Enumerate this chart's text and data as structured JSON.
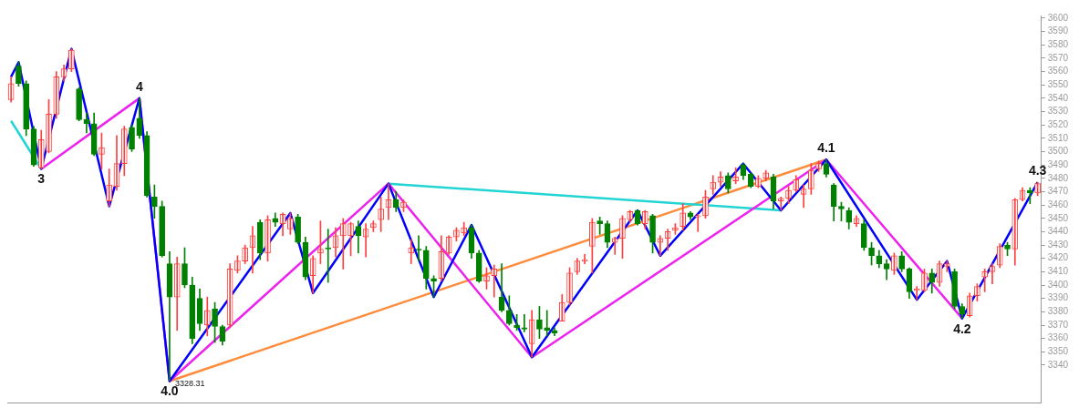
{
  "chart_data": {
    "type": "candlestick",
    "categories": [
      null,
      null,
      null,
      null,
      null,
      null,
      null,
      null,
      null,
      null,
      null,
      null,
      null,
      null,
      null,
      null,
      null,
      null,
      null,
      null,
      null,
      null,
      null,
      null,
      null,
      null,
      null,
      null,
      null,
      null,
      null,
      null,
      null,
      null,
      null,
      null,
      null,
      null,
      null,
      null,
      null,
      null,
      null,
      null,
      null,
      null,
      null,
      null,
      null,
      null,
      null,
      null,
      null,
      null,
      null,
      null,
      null,
      null,
      null,
      null,
      null,
      null,
      null,
      null,
      null,
      null,
      null,
      null,
      null,
      null,
      null,
      null,
      null,
      null,
      null,
      null,
      null,
      null,
      null,
      null,
      null,
      null,
      null,
      null,
      null,
      null,
      null,
      null,
      null,
      null,
      null,
      null,
      null,
      null,
      null,
      null,
      null,
      null,
      null,
      null,
      null,
      null,
      null,
      null,
      null,
      null,
      null,
      null,
      null,
      null,
      null,
      null,
      null,
      null,
      null,
      null,
      null,
      null,
      null,
      null,
      null,
      null,
      null,
      null,
      null,
      null,
      null,
      null,
      null,
      null,
      null,
      null,
      null,
      null,
      null,
      null,
      null
    ],
    "ohlc": [
      [
        3539,
        3556,
        3537,
        3551
      ],
      [
        3564,
        3567,
        3549,
        3551
      ],
      [
        3551,
        3553,
        3512,
        3517
      ],
      [
        3517,
        3519,
        3489,
        3490
      ],
      [
        3488,
        3516,
        3487,
        3509
      ],
      [
        3500,
        3539,
        3499,
        3528
      ],
      [
        3528,
        3560,
        3525,
        3556
      ],
      [
        3556,
        3565,
        3553,
        3562
      ],
      [
        3562,
        3577,
        3560,
        3576
      ],
      [
        3547,
        3548,
        3523,
        3524
      ],
      [
        3524,
        3529,
        3514,
        3521
      ],
      [
        3521,
        3529,
        3497,
        3498
      ],
      [
        3498,
        3514,
        3487,
        3503
      ],
      [
        3463,
        3487,
        3459,
        3475
      ],
      [
        3474,
        3512,
        3471,
        3491
      ],
      [
        3491,
        3519,
        3482,
        3517
      ],
      [
        3518,
        3520,
        3500,
        3502
      ],
      [
        3525,
        3540,
        3510,
        3512
      ],
      [
        3512,
        3515,
        3466,
        3467
      ],
      [
        3466,
        3475,
        3450,
        3459
      ],
      [
        3459,
        3463,
        3421,
        3422
      ],
      [
        3416,
        3425,
        3328.31,
        3391
      ],
      [
        3391,
        3421,
        3366,
        3416
      ],
      [
        3416,
        3428,
        3398,
        3400
      ],
      [
        3400,
        3406,
        3356,
        3360
      ],
      [
        3390,
        3397,
        3366,
        3371
      ],
      [
        3370,
        3391,
        3362,
        3381
      ],
      [
        3382,
        3387,
        3357,
        3369
      ],
      [
        3369,
        3370,
        3355,
        3358
      ],
      [
        3370,
        3416,
        3368,
        3412
      ],
      [
        3411,
        3422,
        3409,
        3418
      ],
      [
        3418,
        3430,
        3416,
        3428
      ],
      [
        3428,
        3444,
        3409,
        3437
      ],
      [
        3447,
        3449,
        3419,
        3424
      ],
      [
        3424,
        3452,
        3418,
        3449
      ],
      [
        3450,
        3454,
        3444,
        3447
      ],
      [
        3446,
        3454,
        3437,
        3453
      ],
      [
        3442,
        3454,
        3438,
        3450
      ],
      [
        3451,
        3453,
        3431,
        3432
      ],
      [
        3432,
        3436,
        3404,
        3406
      ],
      [
        3407,
        3422,
        3394,
        3420
      ],
      [
        3424,
        3448,
        3416,
        3427
      ],
      [
        3428,
        3442,
        3402,
        3427
      ],
      [
        3428,
        3443,
        3421,
        3437
      ],
      [
        3437,
        3450,
        3412,
        3446
      ],
      [
        3437,
        3447,
        3422,
        3446
      ],
      [
        3444,
        3448,
        3424,
        3437
      ],
      [
        3436,
        3446,
        3421,
        3442
      ],
      [
        3443,
        3448,
        3440,
        3446
      ],
      [
        3449,
        3466,
        3440,
        3457
      ],
      [
        3458,
        3476,
        3449,
        3464
      ],
      [
        3464,
        3470,
        3455,
        3458
      ],
      [
        3458,
        3464,
        3455,
        3462
      ],
      [
        3424,
        3434,
        3416,
        3428
      ],
      [
        3427,
        3437,
        3418,
        3426
      ],
      [
        3426,
        3429,
        3397,
        3405
      ],
      [
        3405,
        3407,
        3391,
        3403
      ],
      [
        3405,
        3437,
        3403,
        3425
      ],
      [
        3424,
        3437,
        3423,
        3436
      ],
      [
        3436,
        3443,
        3433,
        3441
      ],
      [
        3439,
        3447,
        3437,
        3443
      ],
      [
        3443,
        3445,
        3420,
        3424
      ],
      [
        3424,
        3426,
        3402,
        3403
      ],
      [
        3403,
        3413,
        3397,
        3407
      ],
      [
        3407,
        3415,
        3391,
        3412
      ],
      [
        3391,
        3416,
        3380,
        3381
      ],
      [
        3381,
        3392,
        3370,
        3371
      ],
      [
        3370,
        3378,
        3366,
        3368
      ],
      [
        3368,
        3378,
        3365,
        3367
      ],
      [
        3356,
        3381,
        3346,
        3374
      ],
      [
        3374,
        3384,
        3360,
        3367
      ],
      [
        3368,
        3381,
        3362,
        3366
      ],
      [
        3366,
        3368,
        3362,
        3364
      ],
      [
        3373,
        3393,
        3373,
        3387
      ],
      [
        3387,
        3413,
        3385,
        3409
      ],
      [
        3410,
        3420,
        3408,
        3418
      ],
      [
        3418,
        3423,
        3416,
        3419
      ],
      [
        3429,
        3450,
        3409,
        3447
      ],
      [
        3448,
        3451,
        3438,
        3446
      ],
      [
        3446,
        3448,
        3428,
        3432
      ],
      [
        3432,
        3436,
        3423,
        3435
      ],
      [
        3435,
        3452,
        3420,
        3450
      ],
      [
        3449,
        3456,
        3447,
        3455
      ],
      [
        3456,
        3456,
        3445,
        3446
      ],
      [
        3446,
        3456,
        3442,
        3455
      ],
      [
        3452,
        3453,
        3424,
        3432
      ],
      [
        3432,
        3437,
        3422,
        3435
      ],
      [
        3435,
        3442,
        3426,
        3440
      ],
      [
        3441,
        3446,
        3438,
        3443
      ],
      [
        3444,
        3461,
        3441,
        3454
      ],
      [
        3454,
        3455,
        3449,
        3451
      ],
      [
        3451,
        3453,
        3440,
        3452
      ],
      [
        3452,
        3471,
        3450,
        3466
      ],
      [
        3472,
        3482,
        3468,
        3477
      ],
      [
        3477,
        3485,
        3474,
        3481
      ],
      [
        3482,
        3484,
        3469,
        3472
      ],
      [
        3478,
        3488,
        3476,
        3481
      ],
      [
        3490,
        3491,
        3479,
        3482
      ],
      [
        3483,
        3484,
        3473,
        3474
      ],
      [
        3474,
        3482,
        3473,
        3480
      ],
      [
        3480,
        3486,
        3478,
        3484
      ],
      [
        3481,
        3483,
        3457,
        3463
      ],
      [
        3463,
        3466,
        3456,
        3465
      ],
      [
        3465,
        3474,
        3461,
        3471
      ],
      [
        3471,
        3482,
        3470,
        3479
      ],
      [
        3468,
        3475,
        3458,
        3472
      ],
      [
        3472,
        3491,
        3468,
        3486
      ],
      [
        3487,
        3493,
        3485,
        3491
      ],
      [
        3491,
        3494,
        3481,
        3483
      ],
      [
        3475,
        3476,
        3448,
        3459
      ],
      [
        3459,
        3462,
        3448,
        3457
      ],
      [
        3456,
        3458,
        3442,
        3447
      ],
      [
        3446,
        3452,
        3444,
        3450
      ],
      [
        3446,
        3449,
        3426,
        3428
      ],
      [
        3428,
        3432,
        3415,
        3422
      ],
      [
        3422,
        3426,
        3413,
        3416
      ],
      [
        3416,
        3419,
        3404,
        3412
      ],
      [
        3411,
        3424,
        3408,
        3422
      ],
      [
        3422,
        3425,
        3410,
        3412
      ],
      [
        3412,
        3413,
        3390,
        3395
      ],
      [
        3396,
        3399,
        3389,
        3397
      ],
      [
        3396,
        3412,
        3395,
        3409
      ],
      [
        3409,
        3412,
        3394,
        3402
      ],
      [
        3402,
        3418,
        3399,
        3416
      ],
      [
        3414,
        3418,
        3410,
        3416
      ],
      [
        3410,
        3412,
        3382,
        3384
      ],
      [
        3384,
        3386,
        3375,
        3378
      ],
      [
        3377,
        3394,
        3376,
        3392
      ],
      [
        3392,
        3401,
        3388,
        3399
      ],
      [
        3406,
        3412,
        3395,
        3410
      ],
      [
        3410,
        3416,
        3401,
        3414
      ],
      [
        3415,
        3431,
        3413,
        3429
      ],
      [
        3430,
        3432,
        3422,
        3427
      ],
      [
        3427,
        3465,
        3415,
        3464
      ],
      [
        3464,
        3473,
        3463,
        3471
      ],
      [
        3471,
        3473,
        3461,
        3469
      ],
      [
        3469,
        3477,
        3467,
        3476
      ]
    ],
    "colors": [
      "#ff4040",
      "#008000",
      "#008000",
      "#008000",
      "#ff4040",
      "#ff4040",
      "#ff4040",
      "#ff4040",
      "#ff4040",
      "#008000",
      "#008000",
      "#008000",
      "#ff4040",
      "#ff4040",
      "#ff4040",
      "#ff4040",
      "#008000",
      "#008000",
      "#008000",
      "#008000",
      "#008000",
      "#008000",
      "#ff4040",
      "#008000",
      "#008000",
      "#008000",
      "#ff4040",
      "#008000",
      "#008000",
      "#ff4040",
      "#ff4040",
      "#ff4040",
      "#ff4040",
      "#008000",
      "#ff4040",
      "#008000",
      "#ff4040",
      "#ff4040",
      "#008000",
      "#008000",
      "#ff4040",
      "#ff4040",
      "#008000",
      "#ff4040",
      "#ff4040",
      "#ff4040",
      "#008000",
      "#ff4040",
      "#ff4040",
      "#ff4040",
      "#ff4040",
      "#008000",
      "#ff4040",
      "#ff4040",
      "#008000",
      "#008000",
      "#008000",
      "#ff4040",
      "#ff4040",
      "#ff4040",
      "#ff4040",
      "#008000",
      "#008000",
      "#ff4040",
      "#ff4040",
      "#008000",
      "#008000",
      "#008000",
      "#008000",
      "#ff4040",
      "#008000",
      "#008000",
      "#008000",
      "#ff4040",
      "#ff4040",
      "#ff4040",
      "#ff4040",
      "#ff4040",
      "#008000",
      "#008000",
      "#ff4040",
      "#ff4040",
      "#ff4040",
      "#008000",
      "#ff4040",
      "#008000",
      "#ff4040",
      "#ff4040",
      "#ff4040",
      "#ff4040",
      "#008000",
      "#ff4040",
      "#ff4040",
      "#ff4040",
      "#ff4040",
      "#008000",
      "#ff4040",
      "#008000",
      "#008000",
      "#ff4040",
      "#ff4040",
      "#008000",
      "#ff4040",
      "#ff4040",
      "#ff4040",
      "#ff4040",
      "#ff4040",
      "#ff4040",
      "#008000",
      "#008000",
      "#008000",
      "#008000",
      "#ff4040",
      "#008000",
      "#008000",
      "#008000",
      "#008000",
      "#ff4040",
      "#008000",
      "#008000",
      "#ff4040",
      "#ff4040",
      "#008000",
      "#ff4040",
      "#ff4040",
      "#008000",
      "#008000",
      "#ff4040",
      "#ff4040",
      "#ff4040",
      "#ff4040",
      "#ff4040",
      "#008000",
      "#ff4040",
      "#ff4040",
      "#008000",
      "#ff4040"
    ],
    "series": [
      {
        "type": "line",
        "color": "#0000ff",
        "values": [
          3556,
          3567,
          null,
          null,
          3487,
          null,
          null,
          null,
          3577,
          null,
          null,
          null,
          null,
          3459,
          null,
          null,
          null,
          3540,
          null,
          null,
          null,
          3328,
          null,
          null,
          null,
          null,
          null,
          null,
          null,
          null,
          null,
          null,
          null,
          null,
          null,
          null,
          null,
          3454,
          null,
          null,
          3394,
          null,
          null,
          null,
          null,
          null,
          null,
          null,
          null,
          null,
          3476,
          null,
          null,
          null,
          null,
          null,
          3391,
          null,
          null,
          null,
          null,
          3445,
          null,
          null,
          null,
          null,
          null,
          null,
          null,
          3346,
          null,
          null,
          null,
          null,
          null,
          null,
          null,
          null,
          null,
          null,
          null,
          null,
          null,
          3456,
          null,
          null,
          3422,
          null,
          null,
          null,
          null,
          null,
          null,
          null,
          null,
          null,
          null,
          3491,
          null,
          null,
          null,
          null,
          3456,
          null,
          null,
          null,
          null,
          null,
          3494,
          null,
          null,
          null,
          null,
          null,
          null,
          null,
          null,
          null,
          null,
          null,
          3389,
          null,
          null,
          null,
          3418,
          null,
          3375,
          null,
          null,
          null,
          null,
          null,
          null,
          null,
          null,
          null,
          3477
        ]
      },
      {
        "type": "line",
        "color": "#ee22ee",
        "values": [
          null,
          null,
          null,
          null,
          3487,
          null,
          null,
          null,
          null,
          null,
          null,
          null,
          null,
          null,
          null,
          null,
          null,
          3540,
          null,
          null,
          null,
          3328,
          null,
          null,
          null,
          null,
          null,
          null,
          null,
          null,
          null,
          null,
          null,
          null,
          null,
          null,
          null,
          null,
          null,
          null,
          null,
          null,
          null,
          null,
          null,
          null,
          null,
          null,
          null,
          null,
          3476,
          null,
          null,
          null,
          null,
          null,
          null,
          null,
          null,
          null,
          null,
          null,
          null,
          null,
          null,
          null,
          null,
          null,
          null,
          3346,
          null,
          null,
          null,
          null,
          null,
          null,
          null,
          null,
          null,
          null,
          null,
          null,
          null,
          null,
          null,
          null,
          null,
          null,
          null,
          null,
          null,
          null,
          null,
          null,
          null,
          null,
          null,
          null,
          null,
          null,
          null,
          null,
          null,
          null,
          null,
          null,
          null,
          null,
          3494,
          null,
          null,
          null,
          null,
          null,
          null,
          null,
          null,
          null,
          null,
          null,
          null,
          null,
          null,
          null,
          null,
          null,
          3375,
          null,
          null,
          null,
          null,
          null,
          null,
          null,
          null,
          null,
          null
        ]
      },
      {
        "type": "line",
        "color": "#22d4d4",
        "values": [
          3523,
          null,
          null,
          null,
          3487,
          null,
          null,
          null,
          null,
          null,
          null,
          null,
          null,
          null,
          null,
          null,
          null,
          null,
          null,
          null,
          null,
          null,
          null,
          null,
          null,
          null,
          null,
          null,
          null,
          null,
          null,
          null,
          null,
          null,
          null,
          null,
          null,
          null,
          null,
          null,
          null,
          null,
          null,
          null,
          null,
          null,
          null,
          null,
          null,
          null,
          null,
          null,
          null,
          null,
          null,
          null,
          null,
          null,
          null,
          null,
          null,
          null,
          null,
          null,
          null,
          null,
          null,
          null,
          null,
          null,
          null,
          null,
          null,
          null,
          null,
          null,
          null,
          null,
          null,
          null,
          null,
          null,
          null,
          null,
          null,
          null,
          null,
          null,
          null,
          null,
          null,
          null,
          null,
          null,
          null,
          null,
          null,
          null,
          null,
          null,
          null,
          null,
          null,
          null,
          null,
          null,
          null,
          null,
          null,
          null,
          null,
          null,
          null,
          null,
          null,
          null,
          null,
          null,
          null,
          null,
          null,
          null,
          null,
          null,
          null,
          null,
          null,
          null,
          null,
          null,
          null,
          null,
          null,
          null,
          null,
          null,
          null
        ]
      },
      {
        "type": "line",
        "color": "#22d4d4",
        "values": [
          null,
          null,
          null,
          null,
          null,
          null,
          null,
          null,
          null,
          null,
          null,
          null,
          null,
          null,
          null,
          null,
          null,
          null,
          null,
          null,
          null,
          null,
          null,
          null,
          null,
          null,
          null,
          null,
          null,
          null,
          null,
          null,
          null,
          null,
          null,
          null,
          null,
          null,
          null,
          null,
          null,
          null,
          null,
          null,
          null,
          null,
          null,
          null,
          null,
          null,
          3476,
          null,
          null,
          null,
          null,
          null,
          null,
          null,
          null,
          null,
          null,
          null,
          null,
          null,
          null,
          null,
          null,
          null,
          null,
          null,
          null,
          null,
          null,
          null,
          null,
          null,
          null,
          null,
          null,
          null,
          null,
          null,
          null,
          null,
          null,
          null,
          null,
          null,
          null,
          null,
          null,
          null,
          null,
          null,
          null,
          null,
          null,
          null,
          null,
          null,
          null,
          null,
          3456,
          null,
          null,
          null,
          null,
          null,
          null,
          null,
          null,
          null,
          null,
          null,
          null,
          null,
          null,
          null,
          null,
          null,
          null,
          null,
          null,
          null,
          null,
          null,
          null,
          null,
          null,
          null,
          null,
          null,
          null,
          null,
          null,
          null,
          null
        ]
      },
      {
        "type": "line",
        "color": "#ff8c3c",
        "values": [
          null,
          null,
          null,
          null,
          null,
          null,
          null,
          null,
          null,
          null,
          null,
          null,
          null,
          null,
          null,
          null,
          null,
          null,
          null,
          null,
          null,
          3328,
          null,
          null,
          null,
          null,
          null,
          null,
          null,
          null,
          null,
          null,
          null,
          null,
          null,
          null,
          null,
          null,
          null,
          null,
          null,
          null,
          null,
          null,
          null,
          null,
          null,
          null,
          null,
          null,
          null,
          null,
          null,
          null,
          null,
          null,
          null,
          null,
          null,
          null,
          null,
          null,
          null,
          null,
          null,
          null,
          null,
          null,
          null,
          null,
          null,
          null,
          null,
          null,
          null,
          null,
          null,
          null,
          null,
          null,
          null,
          null,
          null,
          null,
          null,
          null,
          null,
          null,
          null,
          null,
          null,
          null,
          null,
          null,
          null,
          null,
          null,
          null,
          null,
          null,
          null,
          null,
          null,
          null,
          null,
          null,
          null,
          null,
          3494,
          null,
          null,
          null,
          null,
          null,
          null,
          null,
          null,
          null,
          null,
          null,
          null,
          null,
          null,
          null,
          null,
          null,
          null,
          null,
          null,
          null,
          null,
          null,
          null,
          null,
          null,
          null,
          null
        ]
      }
    ],
    "annotations": [
      {
        "text": "3",
        "y": 3487
      },
      {
        "text": "4",
        "y": 3540
      },
      {
        "text": "4.0",
        "y": 3328
      },
      "3328.31",
      {
        "text": "4.1",
        "y": 3494
      },
      {
        "text": "4.2",
        "y": 3375
      },
      {
        "text": "4.3",
        "y": 3477
      }
    ],
    "ylim": [
      3312,
      3602
    ],
    "yticks": [
      3340,
      3350,
      3360,
      3370,
      3380,
      3390,
      3400,
      3410,
      3420,
      3430,
      3440,
      3450,
      3460,
      3470,
      3480,
      3490,
      3500,
      3510,
      3520,
      3530,
      3540,
      3550,
      3560,
      3570,
      3580,
      3590,
      3600
    ],
    "tick_labels": "y",
    "legend": false,
    "grid": false
  }
}
